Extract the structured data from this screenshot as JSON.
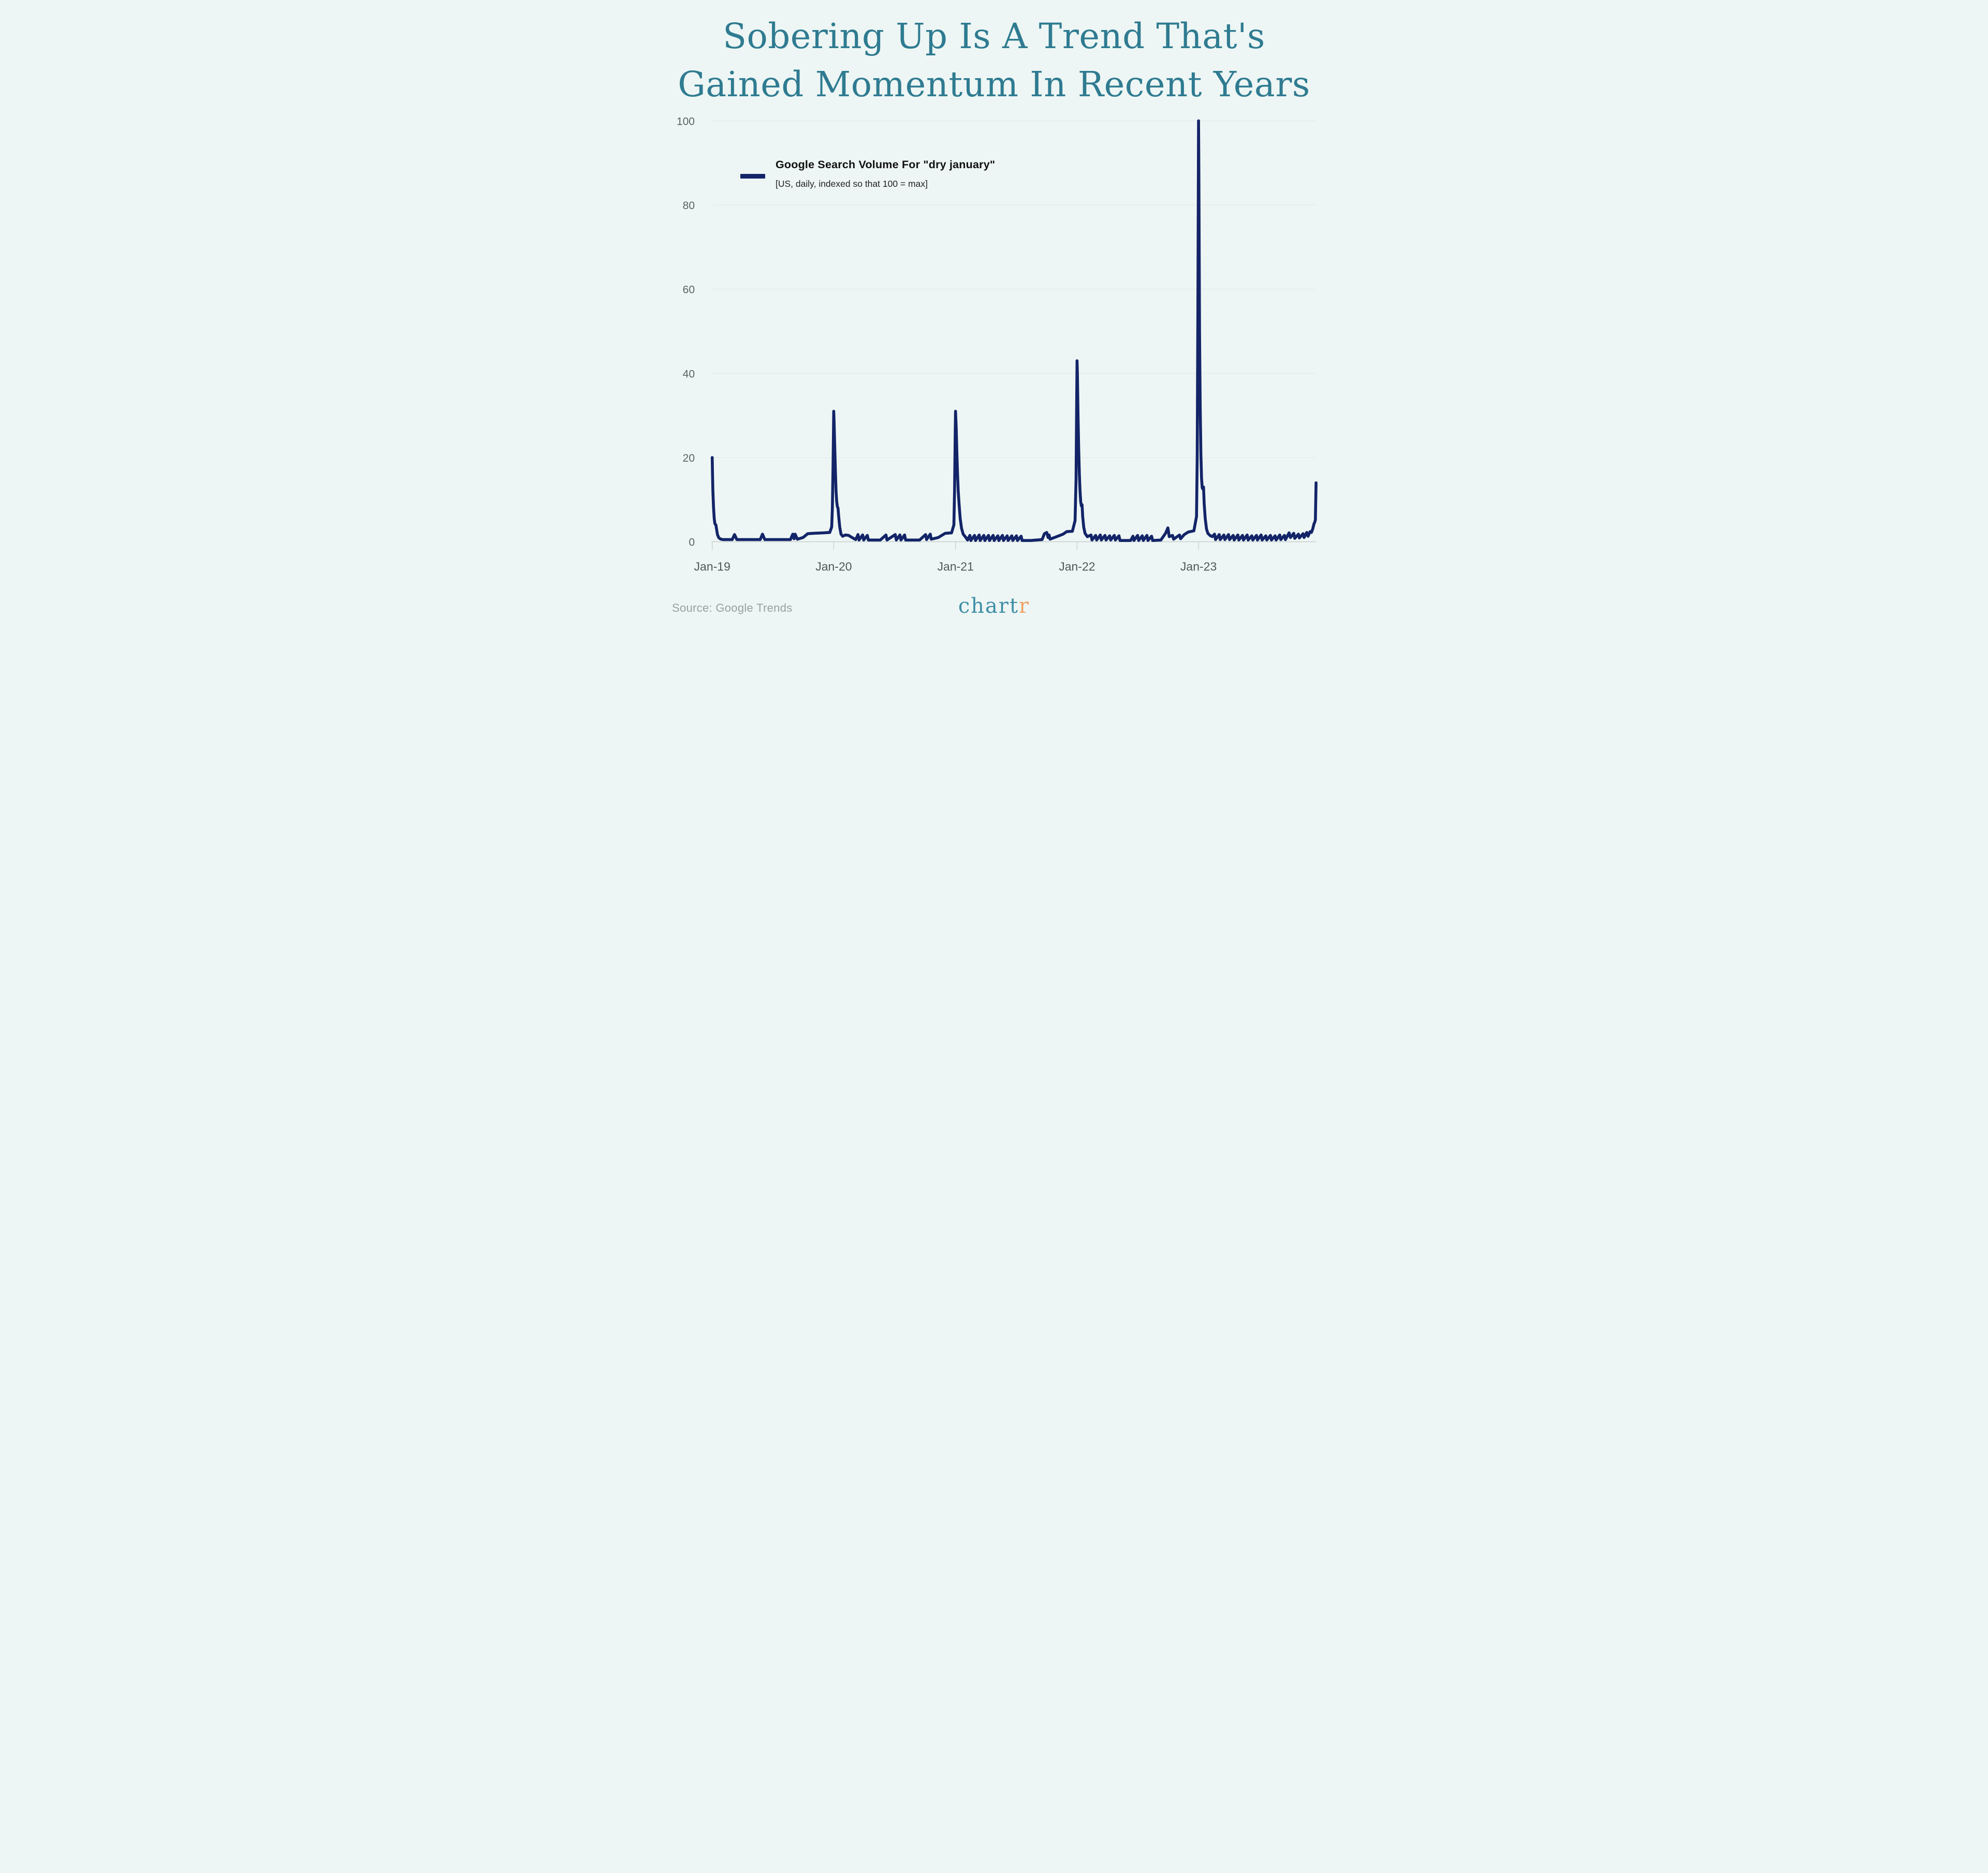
{
  "title": {
    "line1": "Sobering Up Is A Trend That's",
    "line2": "Gained Momentum In Recent Years"
  },
  "legend": {
    "label": "Google Search Volume For \"dry january\"",
    "sublabel": "[US, daily, indexed so that 100 = max]",
    "swatch_color": "#132468"
  },
  "source": "Source: Google Trends",
  "logo": {
    "part1": "chart",
    "part2": "r"
  },
  "colors": {
    "background": "#edf6f4",
    "title": "#2f7b91",
    "line": "#132468",
    "grid": "#e3edea",
    "axis": "#cbd3d1",
    "tick_label": "#5a6361",
    "source": "#98a19e",
    "logo_teal": "#3e8ea6",
    "logo_orange": "#f0a265"
  },
  "chart_data": {
    "type": "line",
    "title": "Sobering Up Is A Trend That's Gained Momentum In Recent Years",
    "series_name": "Google Search Volume For \"dry january\"",
    "units_note": "US, daily, indexed so that 100 = max",
    "grid": "horizontal",
    "legend_position": "top-left",
    "ylim": [
      0,
      100
    ],
    "y_ticks": [
      0,
      20,
      40,
      60,
      80,
      100
    ],
    "x_domain": [
      "2019-01-01",
      "2023-12-20"
    ],
    "x_ticks": [
      {
        "label": "Jan-19",
        "date": "2019-01-01"
      },
      {
        "label": "Jan-20",
        "date": "2020-01-01"
      },
      {
        "label": "Jan-21",
        "date": "2021-01-01"
      },
      {
        "label": "Jan-22",
        "date": "2022-01-01"
      },
      {
        "label": "Jan-23",
        "date": "2023-01-01"
      }
    ],
    "annual_peak_values": {
      "Jan-19": 20,
      "Jan-20": 31,
      "Jan-21": 31,
      "Jan-22": 43,
      "Jan-23": 100
    },
    "points": [
      [
        "2019-01-01",
        20
      ],
      [
        "2019-01-02",
        16
      ],
      [
        "2019-01-03",
        12
      ],
      [
        "2019-01-05",
        8
      ],
      [
        "2019-01-07",
        5.5
      ],
      [
        "2019-01-09",
        4.3
      ],
      [
        "2019-01-12",
        4.0
      ],
      [
        "2019-01-14",
        3.0
      ],
      [
        "2019-01-17",
        1.6
      ],
      [
        "2019-01-21",
        0.9
      ],
      [
        "2019-01-27",
        0.6
      ],
      [
        "2019-02-03",
        0.5
      ],
      [
        "2019-03-02",
        0.5
      ],
      [
        "2019-03-09",
        1.7
      ],
      [
        "2019-03-16",
        0.5
      ],
      [
        "2019-05-25",
        0.5
      ],
      [
        "2019-06-01",
        1.8
      ],
      [
        "2019-06-08",
        0.5
      ],
      [
        "2019-08-24",
        0.5
      ],
      [
        "2019-08-31",
        1.8
      ],
      [
        "2019-09-04",
        0.7
      ],
      [
        "2019-09-07",
        1.8
      ],
      [
        "2019-09-14",
        0.6
      ],
      [
        "2019-10-01",
        1.0
      ],
      [
        "2019-10-15",
        1.9
      ],
      [
        "2019-11-01",
        2.0
      ],
      [
        "2019-12-01",
        2.1
      ],
      [
        "2019-12-20",
        2.2
      ],
      [
        "2019-12-26",
        3.5
      ],
      [
        "2019-12-28",
        8
      ],
      [
        "2019-12-30",
        18
      ],
      [
        "2020-01-01",
        31
      ],
      [
        "2020-01-02",
        29
      ],
      [
        "2020-01-04",
        23
      ],
      [
        "2020-01-06",
        17
      ],
      [
        "2020-01-08",
        12
      ],
      [
        "2020-01-10",
        9.5
      ],
      [
        "2020-01-12",
        8.3
      ],
      [
        "2020-01-14",
        8.0
      ],
      [
        "2020-01-16",
        6.0
      ],
      [
        "2020-01-19",
        3.5
      ],
      [
        "2020-01-23",
        1.8
      ],
      [
        "2020-01-28",
        1.3
      ],
      [
        "2020-02-05",
        1.6
      ],
      [
        "2020-02-15",
        1.5
      ],
      [
        "2020-02-25",
        1.0
      ],
      [
        "2020-03-07",
        0.5
      ],
      [
        "2020-03-14",
        1.7
      ],
      [
        "2020-03-17",
        0.4
      ],
      [
        "2020-03-28",
        1.6
      ],
      [
        "2020-03-31",
        0.4
      ],
      [
        "2020-04-11",
        1.5
      ],
      [
        "2020-04-14",
        0.4
      ],
      [
        "2020-05-20",
        0.4
      ],
      [
        "2020-06-06",
        1.6
      ],
      [
        "2020-06-09",
        0.4
      ],
      [
        "2020-07-04",
        1.7
      ],
      [
        "2020-07-07",
        0.4
      ],
      [
        "2020-07-18",
        1.6
      ],
      [
        "2020-07-21",
        0.4
      ],
      [
        "2020-08-01",
        1.6
      ],
      [
        "2020-08-04",
        0.4
      ],
      [
        "2020-09-15",
        0.4
      ],
      [
        "2020-10-03",
        1.7
      ],
      [
        "2020-10-06",
        0.5
      ],
      [
        "2020-10-17",
        1.8
      ],
      [
        "2020-10-20",
        0.6
      ],
      [
        "2020-11-10",
        1.0
      ],
      [
        "2020-12-01",
        2.0
      ],
      [
        "2020-12-20",
        2.1
      ],
      [
        "2020-12-27",
        4
      ],
      [
        "2020-12-29",
        12
      ],
      [
        "2020-12-31",
        26
      ],
      [
        "2021-01-01",
        31
      ],
      [
        "2021-01-03",
        27
      ],
      [
        "2021-01-05",
        21
      ],
      [
        "2021-01-07",
        16
      ],
      [
        "2021-01-09",
        12
      ],
      [
        "2021-01-12",
        8.5
      ],
      [
        "2021-01-15",
        5.5
      ],
      [
        "2021-01-19",
        3.2
      ],
      [
        "2021-01-24",
        1.8
      ],
      [
        "2021-02-01",
        1.0
      ],
      [
        "2021-02-06",
        0.4
      ],
      [
        "2021-02-13",
        1.5
      ],
      [
        "2021-02-16",
        0.3
      ],
      [
        "2021-02-27",
        1.5
      ],
      [
        "2021-03-02",
        0.3
      ],
      [
        "2021-03-13",
        1.6
      ],
      [
        "2021-03-16",
        0.3
      ],
      [
        "2021-03-27",
        1.5
      ],
      [
        "2021-03-30",
        0.3
      ],
      [
        "2021-04-10",
        1.5
      ],
      [
        "2021-04-13",
        0.3
      ],
      [
        "2021-04-24",
        1.5
      ],
      [
        "2021-04-27",
        0.3
      ],
      [
        "2021-05-08",
        1.4
      ],
      [
        "2021-05-11",
        0.3
      ],
      [
        "2021-05-22",
        1.5
      ],
      [
        "2021-05-25",
        0.3
      ],
      [
        "2021-06-05",
        1.4
      ],
      [
        "2021-06-08",
        0.3
      ],
      [
        "2021-06-19",
        1.4
      ],
      [
        "2021-06-22",
        0.3
      ],
      [
        "2021-07-03",
        1.4
      ],
      [
        "2021-07-06",
        0.3
      ],
      [
        "2021-07-17",
        1.3
      ],
      [
        "2021-07-20",
        0.3
      ],
      [
        "2021-08-15",
        0.3
      ],
      [
        "2021-09-18",
        0.5
      ],
      [
        "2021-09-25",
        1.9
      ],
      [
        "2021-10-02",
        2.2
      ],
      [
        "2021-10-06",
        1.0
      ],
      [
        "2021-10-09",
        1.6
      ],
      [
        "2021-10-12",
        0.6
      ],
      [
        "2021-11-01",
        1.2
      ],
      [
        "2021-11-20",
        1.8
      ],
      [
        "2021-12-01",
        2.4
      ],
      [
        "2021-12-18",
        2.5
      ],
      [
        "2021-12-26",
        5
      ],
      [
        "2021-12-29",
        15
      ],
      [
        "2021-12-31",
        35
      ],
      [
        "2022-01-01",
        43
      ],
      [
        "2022-01-02",
        40
      ],
      [
        "2022-01-04",
        30
      ],
      [
        "2022-01-06",
        22
      ],
      [
        "2022-01-08",
        16
      ],
      [
        "2022-01-10",
        12
      ],
      [
        "2022-01-12",
        9.5
      ],
      [
        "2022-01-14",
        8.5
      ],
      [
        "2022-01-16",
        8.8
      ],
      [
        "2022-01-18",
        6.0
      ],
      [
        "2022-01-21",
        3.5
      ],
      [
        "2022-01-25",
        2.0
      ],
      [
        "2022-02-01",
        1.2
      ],
      [
        "2022-02-12",
        1.6
      ],
      [
        "2022-02-15",
        0.4
      ],
      [
        "2022-02-26",
        1.5
      ],
      [
        "2022-03-01",
        0.4
      ],
      [
        "2022-03-12",
        1.6
      ],
      [
        "2022-03-15",
        0.4
      ],
      [
        "2022-03-26",
        1.5
      ],
      [
        "2022-03-29",
        0.4
      ],
      [
        "2022-04-09",
        1.4
      ],
      [
        "2022-04-12",
        0.4
      ],
      [
        "2022-04-23",
        1.5
      ],
      [
        "2022-04-26",
        0.4
      ],
      [
        "2022-05-07",
        1.4
      ],
      [
        "2022-05-10",
        0.3
      ],
      [
        "2022-06-11",
        0.3
      ],
      [
        "2022-06-18",
        1.3
      ],
      [
        "2022-06-21",
        0.3
      ],
      [
        "2022-07-02",
        1.5
      ],
      [
        "2022-07-05",
        0.3
      ],
      [
        "2022-07-16",
        1.4
      ],
      [
        "2022-07-19",
        0.3
      ],
      [
        "2022-07-30",
        1.5
      ],
      [
        "2022-08-02",
        0.3
      ],
      [
        "2022-08-13",
        1.3
      ],
      [
        "2022-08-16",
        0.3
      ],
      [
        "2022-09-10",
        0.4
      ],
      [
        "2022-09-24",
        2.0
      ],
      [
        "2022-10-01",
        3.3
      ],
      [
        "2022-10-05",
        1.2
      ],
      [
        "2022-10-15",
        1.5
      ],
      [
        "2022-10-18",
        0.6
      ],
      [
        "2022-11-05",
        1.6
      ],
      [
        "2022-11-08",
        0.7
      ],
      [
        "2022-11-19",
        1.7
      ],
      [
        "2022-12-01",
        2.3
      ],
      [
        "2022-12-18",
        2.6
      ],
      [
        "2022-12-26",
        6
      ],
      [
        "2022-12-28",
        20
      ],
      [
        "2022-12-30",
        55
      ],
      [
        "2023-01-01",
        100
      ],
      [
        "2023-01-02",
        88
      ],
      [
        "2023-01-03",
        68
      ],
      [
        "2023-01-04",
        50
      ],
      [
        "2023-01-06",
        32
      ],
      [
        "2023-01-08",
        21
      ],
      [
        "2023-01-10",
        15
      ],
      [
        "2023-01-12",
        12.8
      ],
      [
        "2023-01-14",
        12.5
      ],
      [
        "2023-01-16",
        13
      ],
      [
        "2023-01-18",
        9
      ],
      [
        "2023-01-21",
        5.5
      ],
      [
        "2023-01-25",
        3.0
      ],
      [
        "2023-01-29",
        2.0
      ],
      [
        "2023-02-04",
        1.5
      ],
      [
        "2023-02-11",
        1.2
      ],
      [
        "2023-02-18",
        1.8
      ],
      [
        "2023-02-21",
        0.5
      ],
      [
        "2023-03-04",
        1.7
      ],
      [
        "2023-03-07",
        0.5
      ],
      [
        "2023-03-18",
        1.6
      ],
      [
        "2023-03-21",
        0.5
      ],
      [
        "2023-04-01",
        1.7
      ],
      [
        "2023-04-04",
        0.5
      ],
      [
        "2023-04-15",
        1.5
      ],
      [
        "2023-04-18",
        0.4
      ],
      [
        "2023-04-29",
        1.6
      ],
      [
        "2023-05-02",
        0.4
      ],
      [
        "2023-05-13",
        1.5
      ],
      [
        "2023-05-16",
        0.4
      ],
      [
        "2023-05-27",
        1.6
      ],
      [
        "2023-05-30",
        0.4
      ],
      [
        "2023-06-10",
        1.4
      ],
      [
        "2023-06-13",
        0.4
      ],
      [
        "2023-06-24",
        1.5
      ],
      [
        "2023-06-27",
        0.4
      ],
      [
        "2023-07-08",
        1.6
      ],
      [
        "2023-07-11",
        0.4
      ],
      [
        "2023-07-22",
        1.4
      ],
      [
        "2023-07-25",
        0.4
      ],
      [
        "2023-08-05",
        1.5
      ],
      [
        "2023-08-08",
        0.4
      ],
      [
        "2023-08-19",
        1.4
      ],
      [
        "2023-08-22",
        0.4
      ],
      [
        "2023-09-02",
        1.6
      ],
      [
        "2023-09-05",
        0.5
      ],
      [
        "2023-09-16",
        1.5
      ],
      [
        "2023-09-19",
        0.5
      ],
      [
        "2023-09-30",
        2.1
      ],
      [
        "2023-10-04",
        1.0
      ],
      [
        "2023-10-14",
        2.0
      ],
      [
        "2023-10-17",
        0.8
      ],
      [
        "2023-10-28",
        1.8
      ],
      [
        "2023-10-31",
        0.9
      ],
      [
        "2023-11-11",
        1.9
      ],
      [
        "2023-11-14",
        1.0
      ],
      [
        "2023-11-22",
        2.2
      ],
      [
        "2023-11-26",
        1.3
      ],
      [
        "2023-12-02",
        2.4
      ],
      [
        "2023-12-06",
        2.2
      ],
      [
        "2023-12-10",
        3.0
      ],
      [
        "2023-12-14",
        4.3
      ],
      [
        "2023-12-16",
        4.6
      ],
      [
        "2023-12-18",
        5.2
      ],
      [
        "2023-12-20",
        14
      ]
    ]
  }
}
